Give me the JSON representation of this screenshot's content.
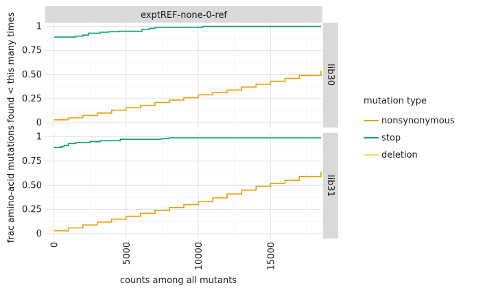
{
  "chart_data": {
    "type": "line",
    "facet_title": "exptREF-none-0-ref",
    "xlabel": "counts among all mutants",
    "ylabel": "frac amino-acid mutations found < this many times",
    "xlim": [
      -600,
      18600
    ],
    "ylim": [
      -0.05,
      1.04
    ],
    "x_ticks": [
      0,
      5000,
      10000,
      15000
    ],
    "x_tick_labels": [
      "0",
      "5000",
      "10000",
      "15000"
    ],
    "y_ticks": [
      0,
      0.25,
      0.5,
      0.75,
      1
    ],
    "y_tick_labels": [
      "0",
      "0.25",
      "0.50",
      "0.75",
      "1"
    ],
    "grid": true,
    "legend_position": "right",
    "legend": {
      "title": "mutation type",
      "items": [
        {
          "name": "nonsynonymous",
          "color": "#E69F00"
        },
        {
          "name": "stop",
          "color": "#009E73"
        },
        {
          "name": "deletion",
          "color": "#F0E442"
        }
      ]
    },
    "panels": [
      {
        "label": "lib30",
        "series": [
          {
            "name": "nonsynonymous",
            "color": "#E69F00",
            "x": [
              0,
              1000,
              2000,
              3000,
              4000,
              5000,
              6000,
              7000,
              8000,
              9000,
              10000,
              11000,
              12000,
              13000,
              14000,
              15000,
              16000,
              17000,
              18500
            ],
            "y": [
              0.03,
              0.05,
              0.075,
              0.1,
              0.13,
              0.155,
              0.18,
              0.21,
              0.235,
              0.26,
              0.29,
              0.315,
              0.34,
              0.37,
              0.4,
              0.43,
              0.46,
              0.49,
              0.54
            ]
          },
          {
            "name": "stop",
            "color": "#009E73",
            "x": [
              0,
              1200,
              1500,
              2000,
              2400,
              3200,
              3800,
              4500,
              5800,
              6100,
              6600,
              7000,
              10300,
              18500
            ],
            "y": [
              0.89,
              0.89,
              0.9,
              0.91,
              0.93,
              0.94,
              0.945,
              0.95,
              0.95,
              0.97,
              0.98,
              0.99,
              1.0,
              1.0
            ]
          }
        ]
      },
      {
        "label": "lib31",
        "series": [
          {
            "name": "nonsynonymous",
            "color": "#E69F00",
            "x": [
              0,
              1000,
              2000,
              3000,
              4000,
              5000,
              6000,
              7000,
              8000,
              9000,
              10000,
              11000,
              12000,
              13000,
              14000,
              15000,
              16000,
              17000,
              18500
            ],
            "y": [
              0.03,
              0.06,
              0.09,
              0.12,
              0.15,
              0.18,
              0.21,
              0.24,
              0.27,
              0.3,
              0.33,
              0.37,
              0.41,
              0.45,
              0.49,
              0.52,
              0.55,
              0.59,
              0.64
            ]
          },
          {
            "name": "stop",
            "color": "#009E73",
            "x": [
              0,
              500,
              700,
              1000,
              1500,
              2500,
              3200,
              4500,
              4600,
              7400,
              7600,
              8000,
              18500
            ],
            "y": [
              0.89,
              0.9,
              0.91,
              0.93,
              0.94,
              0.95,
              0.96,
              0.96,
              0.975,
              0.98,
              0.985,
              0.99,
              0.99
            ]
          }
        ]
      }
    ]
  }
}
